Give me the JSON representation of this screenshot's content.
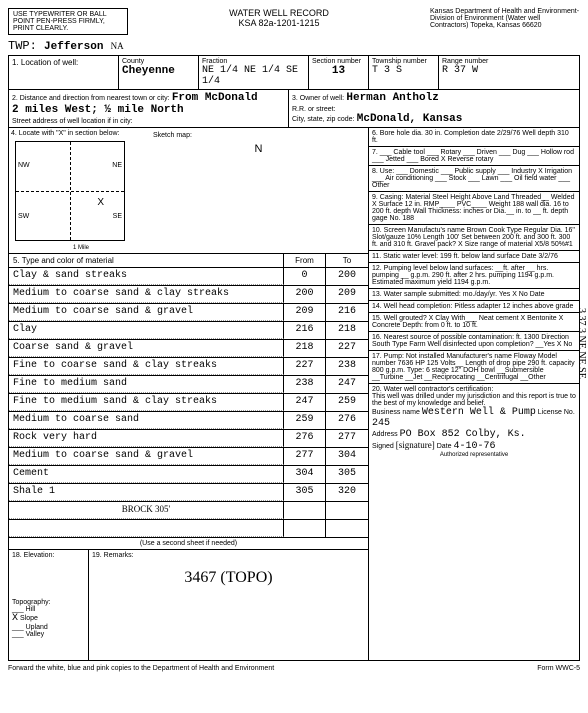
{
  "header": {
    "type_instruction": "USE TYPEWRITER OR BALL POINT PEN-PRESS FIRMLY, PRINT CLEARLY.",
    "title": "WATER WELL RECORD",
    "subtitle": "KSA 82a-1201-1215",
    "dept": "Kansas Department of Health and Environment-Division of Environment (Water well Contractors) Topeka, Kansas 66620",
    "twp_label": "TWP:",
    "twp_value": "Jefferson",
    "twp_hw": "NA"
  },
  "loc": {
    "county_label": "County",
    "county": "Cheyenne",
    "fraction_label": "Fraction",
    "fraction": "NE 1/4 NE 1/4 SE 1/4",
    "section_label": "Section number",
    "section": "13",
    "township_label": "Township number",
    "township": "T 3 S",
    "range_label": "Range number",
    "range": "R 37 W"
  },
  "distance": {
    "label": "2. Distance and direction from nearest town or city:",
    "value": "From McDonald",
    "value2": "2 miles West; ½ mile North",
    "street_label": "Street address of well location if in city:"
  },
  "owner": {
    "label": "3. Owner of well:",
    "name": "Herman Antholz",
    "rr_label": "R.R. or street:",
    "city_label": "City, state, zip code:",
    "city": "McDonald, Kansas"
  },
  "section4_label": "4. Locate with \"X\" in section below:",
  "section5_label": "5. Type and color of material",
  "from_label": "From",
  "to_label": "To",
  "strata": [
    {
      "name": "Clay & sand streaks",
      "from": "0",
      "to": "200"
    },
    {
      "name": "Medium to coarse sand & clay streaks",
      "from": "200",
      "to": "209"
    },
    {
      "name": "Medium to coarse sand & gravel",
      "from": "209",
      "to": "216"
    },
    {
      "name": "Clay",
      "from": "216",
      "to": "218"
    },
    {
      "name": "Coarse sand & gravel",
      "from": "218",
      "to": "227"
    },
    {
      "name": "Fine to coarse sand & clay streaks",
      "from": "227",
      "to": "238"
    },
    {
      "name": "Fine to medium sand",
      "from": "238",
      "to": "247"
    },
    {
      "name": "Fine to medium sand & clay streaks",
      "from": "247",
      "to": "259"
    },
    {
      "name": "Medium to coarse sand",
      "from": "259",
      "to": "276"
    },
    {
      "name": "Rock very hard",
      "from": "276",
      "to": "277"
    },
    {
      "name": "Medium to coarse sand & gravel",
      "from": "277",
      "to": "304"
    },
    {
      "name": "Cement",
      "from": "304",
      "to": "305"
    },
    {
      "name": "Shale 1",
      "from": "305",
      "to": "320"
    }
  ],
  "brock": "BROCK 305'",
  "second_sheet": "(Use a second sheet if needed)",
  "right": {
    "s6": "6. Bore hole dia. 30 in. Completion date 2/29/76 Well depth 310 ft.",
    "s7": "7. ___ Cable tool ___ Rotary ___ Driven ___ Dug ___ Hollow rod ___ Jetted ___ Bored X Reverse rotary",
    "s8": "8. Use: ___ Domestic ___ Public supply ___ Industry X Irrigation ___ Air conditioning ___ Stock ___ Lawn ___ Oil field water ___ Other",
    "s9": "9. Casing: Material Steel Height Above Land Threaded__ Welded X Surface 12 in. RMP____ PVC____ Weight 188 wall dia. 16 to 200 ft. depth Wall Thickness: inches or Dia.__ in. to __ ft. depth gage No. 188",
    "s10": "10. Screen Manufactu's name Brown Cook Type Regular Dia. 16\" Slot/gauze 10% Length 100' Set between 200 ft. and 300 ft. 300 ft. and 310 ft. Gravel pack? X Size range of material X5/8 50%#1",
    "s11": "11. Static water level: 199 ft. below land surface Date 3/2/76",
    "s12": "12. Pumping level below land surfaces: __ft. after __ hrs. pumping __ g.p.m. 290 ft. after 2 hrs. pumping 1194 g.p.m. Estimated maximum yield 1194 g.p.m.",
    "s13": "13. Water sample submitted: mo./day/yr. Yes X No Date",
    "s14": "14. Well head completion: Pitless adapter 12 inches above grade",
    "s15": "15. Well grouted? X Clay With___ Neat cement X Bentonite X Concrete Depth: from 0 ft. to 10 ft.",
    "s16": "16. Nearest source of possible contamination: ft. 1300 Direction South Type Farm Well disinfected upon completion? __Yes X No",
    "s17": "17. Pump: Not installed Manufacturer's name Floway Model number 7636 HP 125 Volts__ Length of drop pipe 290 ft. capacity 800 g.p.m. Type: 6 stage 12\" DOH bowl __Submersible __Turbine __Jet __Reciprocating __Centrifugal __Other"
  },
  "section18_label": "18. Elevation:",
  "section19_label": "19. Remarks:",
  "remarks_hw": "3467 (TOPO)",
  "topo_label": "Topography:",
  "topo_items": [
    "Hill",
    "Slope",
    "Upland",
    "Valley"
  ],
  "topo_x": "X",
  "section20": {
    "label": "20. Water well contractor's certification:",
    "text": "This well was drilled under my jurisdiction and this report is true to the best of my knowledge and belief.",
    "biz_label": "Business name",
    "biz": "Western Well & Pump",
    "lic_label": "License No.",
    "lic": "245",
    "addr_label": "Address",
    "addr": "PO Box 852 Colby, Ks.",
    "sign_label": "Signed",
    "date_label": "Date",
    "date": "4-10-76",
    "auth": "Authorized representative"
  },
  "margin_hw": "3  37  3  NE NE SE",
  "footer": "Forward the white, blue and pink copies to the Department of Health and Environment",
  "form_no": "Form WWC-5"
}
